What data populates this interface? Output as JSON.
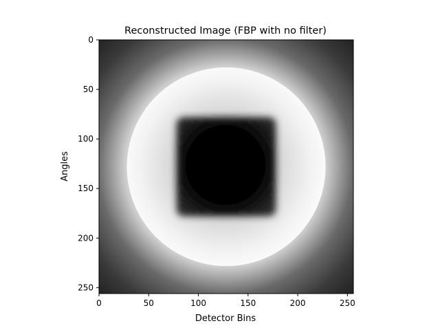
{
  "title": "Reconstructed Image (FBP with no filter)",
  "xlabel": "Detector Bins",
  "ylabel": "Angles",
  "image": {
    "colormap": "gray",
    "width": 256,
    "height": 256,
    "disc": {
      "center_x": 128,
      "center_y": 128,
      "radius": 100,
      "brightness": "white"
    },
    "square": {
      "x_min": 78,
      "x_max": 178,
      "y_min": 78,
      "y_max": 178,
      "brightness": "black"
    },
    "background": "dark gray, brighter near disc"
  },
  "x_axis": {
    "range": [
      0,
      256
    ],
    "ticks": [
      0,
      50,
      100,
      150,
      200,
      250
    ]
  },
  "y_axis": {
    "range": [
      0,
      256
    ],
    "ticks": [
      0,
      50,
      100,
      150,
      200,
      250
    ],
    "inverted": true
  },
  "colors": {
    "frame": "#000000",
    "background": "#ffffff"
  }
}
